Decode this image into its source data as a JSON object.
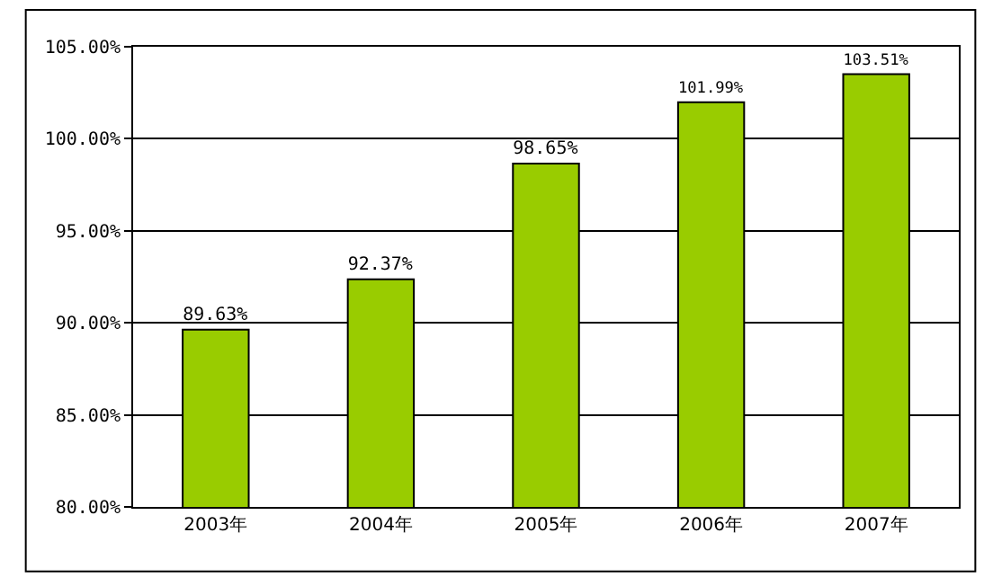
{
  "chart_data": {
    "type": "bar",
    "categories": [
      "2003年",
      "2004年",
      "2005年",
      "2006年",
      "2007年"
    ],
    "values": [
      89.63,
      92.37,
      98.65,
      101.99,
      103.51
    ],
    "value_labels": [
      "89.63%",
      "92.37%",
      "98.65%",
      "101.99%",
      "103.51%"
    ],
    "color": "#99cc00",
    "ylim": [
      80,
      105
    ],
    "yticks": [
      {
        "value": 80,
        "label": "80.00%"
      },
      {
        "value": 85,
        "label": "85.00%"
      },
      {
        "value": 90,
        "label": "90.00%"
      },
      {
        "value": 95,
        "label": "95.00%"
      },
      {
        "value": 100,
        "label": "100.00%"
      },
      {
        "value": 105,
        "label": "105.00%"
      }
    ],
    "grid": "y",
    "legend": false
  }
}
